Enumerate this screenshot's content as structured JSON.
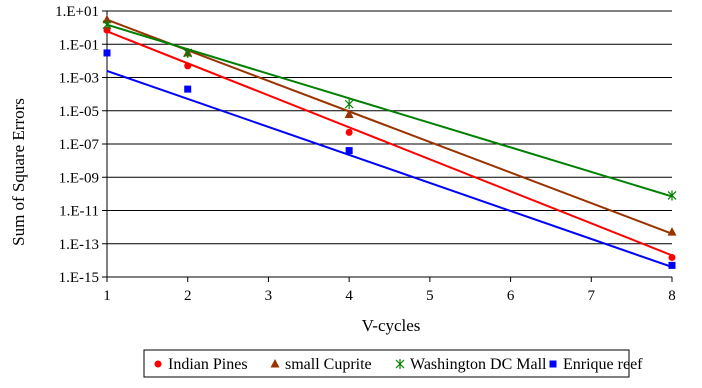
{
  "chart_data": {
    "type": "line",
    "scale_y": "log",
    "xlabel": "V-cycles",
    "ylabel": "Sum of Square Errors",
    "x_ticks": [
      "1",
      "2",
      "3",
      "4",
      "5",
      "6",
      "7",
      "8"
    ],
    "xlim": [
      1,
      8
    ],
    "y_ticks": [
      "1.E+01",
      "1.E-01",
      "1.E-03",
      "1.E-05",
      "1.E-07",
      "1.E-09",
      "1.E-11",
      "1.E-13",
      "1.E-15"
    ],
    "ylim": [
      1e-15,
      10
    ],
    "grid": "horizontal",
    "legend_position": "bottom",
    "series": [
      {
        "name": "Indian Pines",
        "color": "#ff0000",
        "marker": "circle",
        "points": [
          [
            1,
            0.7
          ],
          [
            2,
            0.005
          ],
          [
            4,
            5e-07
          ],
          [
            8,
            1.5e-14
          ]
        ],
        "trend": [
          [
            1,
            0.6
          ],
          [
            8,
            2e-14
          ]
        ]
      },
      {
        "name": "small Cuprite",
        "color": "#993300",
        "marker": "triangle",
        "points": [
          [
            1,
            3
          ],
          [
            2,
            0.03
          ],
          [
            4,
            6e-06
          ],
          [
            8,
            5e-13
          ]
        ],
        "trend": [
          [
            1,
            3
          ],
          [
            8,
            4e-13
          ]
        ]
      },
      {
        "name": "Washington DC Mall",
        "color": "#008000",
        "marker": "x",
        "points": [
          [
            1,
            1.5
          ],
          [
            2,
            0.03
          ],
          [
            4,
            2.5e-05
          ],
          [
            8,
            8e-11
          ]
        ],
        "trend": [
          [
            1,
            1.5
          ],
          [
            8,
            7e-11
          ]
        ]
      },
      {
        "name": "Enrique reef",
        "color": "#0000ff",
        "marker": "square",
        "points": [
          [
            1,
            0.03
          ],
          [
            2,
            0.0002
          ],
          [
            4,
            4e-08
          ],
          [
            8,
            5e-15
          ]
        ],
        "trend": [
          [
            1,
            0.0025
          ],
          [
            8,
            4e-15
          ]
        ]
      }
    ]
  }
}
